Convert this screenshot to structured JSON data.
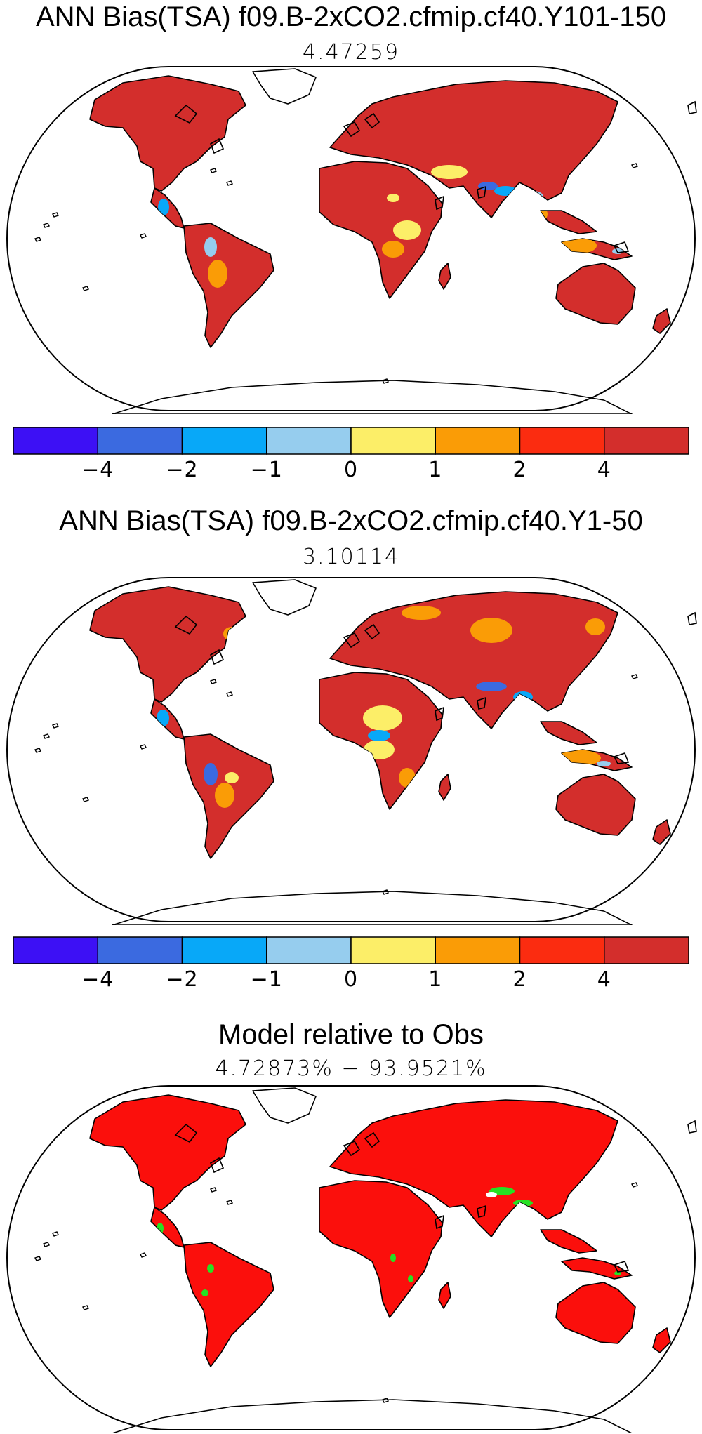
{
  "panels": [
    {
      "title": "ANN Bias(TSA) f09.B-2xCO2.cfmip.cf40.Y101-150",
      "subtitle": "4.47259"
    },
    {
      "title": "ANN Bias(TSA) f09.B-2xCO2.cfmip.cf40.Y1-50",
      "subtitle": "3.10114"
    },
    {
      "title": "Model relative to Obs",
      "subtitle": "4.72873% − 93.9521%"
    }
  ],
  "colorbar": {
    "colors": [
      "#3d10f5",
      "#3b6ae0",
      "#08a8f8",
      "#96cdee",
      "#fcee68",
      "#fa9c06",
      "#fb2c10",
      "#d32e2c"
    ],
    "tick_labels": [
      "−4",
      "−2",
      "−1",
      "0",
      "1",
      "2",
      "4"
    ]
  },
  "map_colors": {
    "ocean": "#ffffff",
    "coast": "#000000",
    "land_warm": "#d32e2c",
    "land_mid": "#fb2c10",
    "land_orange": "#fa9c06",
    "land_yellow": "#fcee68",
    "land_lightblue": "#96cdee",
    "land_blue": "#08a8f8",
    "land_dark": "#3b6ae0",
    "obs_red": "#fb0f0c",
    "obs_green": "#27e024",
    "obs_white": "#ffffff"
  }
}
